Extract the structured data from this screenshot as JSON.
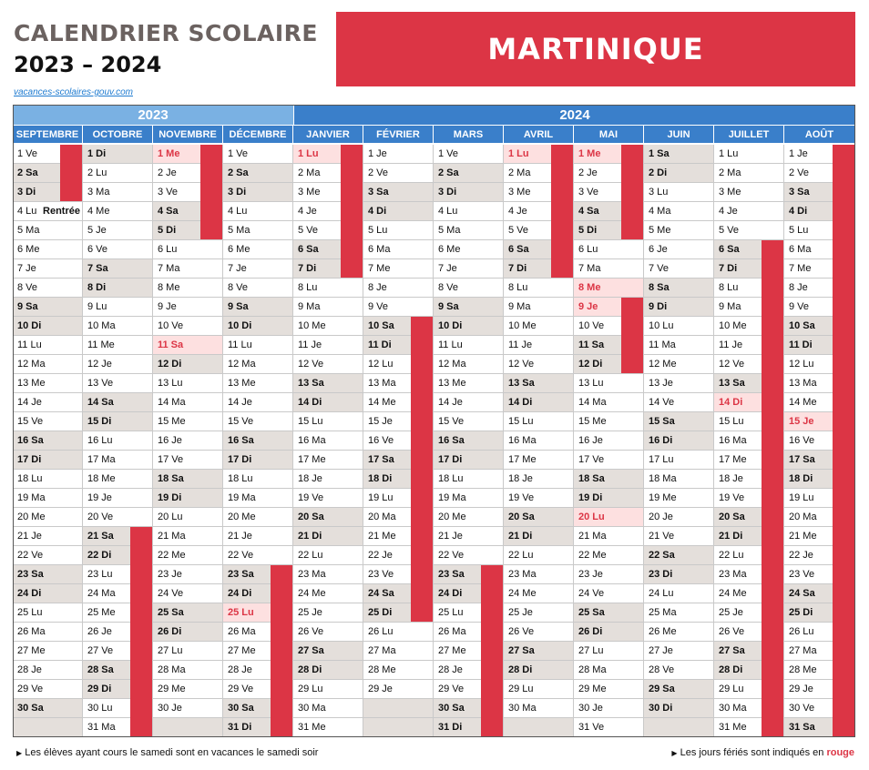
{
  "header": {
    "title_line1": "CALENDRIER SCOLAIRE",
    "title_line2": "2023 – 2024",
    "region": "MARTINIQUE",
    "source": "vacances-scolaires-gouv.com"
  },
  "years": [
    "2023",
    "2024"
  ],
  "months": [
    {
      "name": "SEPTEMBRE",
      "start": 5,
      "days": 30,
      "year": 0,
      "ferie": [],
      "vac": [
        [
          1,
          3
        ]
      ],
      "note": {
        "day": 4,
        "text": "Rentrée"
      }
    },
    {
      "name": "OCTOBRE",
      "start": 0,
      "days": 31,
      "year": 0,
      "ferie": [],
      "vac": [
        [
          21,
          31
        ]
      ]
    },
    {
      "name": "NOVEMBRE",
      "start": 3,
      "days": 30,
      "year": 0,
      "ferie": [
        1,
        11
      ],
      "vac": [
        [
          1,
          5
        ]
      ]
    },
    {
      "name": "DÉCEMBRE",
      "start": 5,
      "days": 31,
      "year": 0,
      "ferie": [
        25
      ],
      "vac": [
        [
          23,
          31
        ]
      ]
    },
    {
      "name": "JANVIER",
      "start": 1,
      "days": 31,
      "year": 1,
      "ferie": [
        1
      ],
      "vac": [
        [
          1,
          7
        ]
      ]
    },
    {
      "name": "FÉVRIER",
      "start": 4,
      "days": 29,
      "year": 1,
      "ferie": [],
      "vac": [
        [
          10,
          25
        ]
      ]
    },
    {
      "name": "MARS",
      "start": 5,
      "days": 31,
      "year": 1,
      "ferie": [],
      "vac": [
        [
          23,
          31
        ]
      ]
    },
    {
      "name": "AVRIL",
      "start": 1,
      "days": 30,
      "year": 1,
      "ferie": [
        1
      ],
      "vac": [
        [
          1,
          7
        ]
      ]
    },
    {
      "name": "MAI",
      "start": 3,
      "days": 31,
      "year": 1,
      "ferie": [
        1,
        8,
        9,
        20
      ],
      "vac": [
        [
          1,
          5
        ],
        [
          9,
          12
        ]
      ]
    },
    {
      "name": "JUIN",
      "start": 6,
      "days": 30,
      "year": 1,
      "ferie": [],
      "vac": []
    },
    {
      "name": "JUILLET",
      "start": 1,
      "days": 31,
      "year": 1,
      "ferie": [
        14
      ],
      "vac": [
        [
          6,
          31
        ]
      ]
    },
    {
      "name": "AOÛT",
      "start": 4,
      "days": 31,
      "year": 1,
      "ferie": [
        15
      ],
      "vac": [
        [
          1,
          31
        ]
      ]
    }
  ],
  "day_abbr": [
    "Di",
    "Lu",
    "Ma",
    "Me",
    "Je",
    "Ve",
    "Sa"
  ],
  "footer": {
    "left": "Les élèves ayant cours le samedi sont en vacances le samedi soir",
    "right_prefix": "Les jours fériés sont indiqués en",
    "right_red": "rouge"
  },
  "colors": {
    "accent": "#dc3545",
    "header_blue": "#3a7fca",
    "year1_blue": "#7ab1e3",
    "weekend": "#e4dfdb"
  }
}
